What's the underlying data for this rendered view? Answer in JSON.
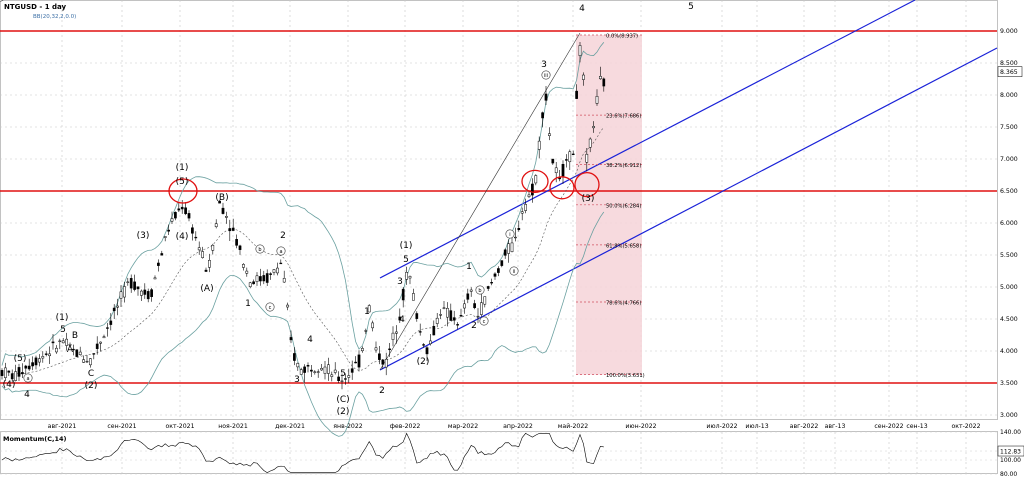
{
  "chart_data": [
    {
      "type": "candlestick",
      "title": "NTGUSD - 1 day",
      "subtitle": "BB(20,32,2,0.0)",
      "symbol": "NTGUSD",
      "timeframe": "1 day",
      "indicator": "BB(20,32,2,0.0)",
      "price_current": "8.365",
      "ylim": [
        2.8,
        9.25
      ],
      "y_ticks": [
        "9.000",
        "8.500",
        "8.000",
        "7.500",
        "7.000",
        "6.500",
        "6.000",
        "5.500",
        "5.000",
        "4.500",
        "4.000",
        "3.500",
        "3.000"
      ],
      "x_ticks": [
        "авг-2021",
        "сен-2021",
        "окт-2021",
        "ноя-2021",
        "дек-2021",
        "янв-2022",
        "фев-2022",
        "мар-2022",
        "апр-2022",
        "май-2022",
        "июн-2022",
        "июл-2022",
        "июл-13",
        "авг-2022",
        "авг-13",
        "сен-2022",
        "сен-13",
        "окт-2022"
      ],
      "horizontal_levels": [
        9.0,
        6.5,
        3.5
      ],
      "fibonacci": [
        {
          "label": "0.0%(8.937)",
          "value": 8.937
        },
        {
          "label": "23.6%(7.686)",
          "value": 7.686
        },
        {
          "label": "38.2%(6.912)",
          "value": 6.912
        },
        {
          "label": "50.0%(6.284)",
          "value": 6.284
        },
        {
          "label": "61.8%(5.658)",
          "value": 5.658
        },
        {
          "label": "78.6%(4.766)",
          "value": 4.766
        },
        {
          "label": "100.0%(3.631)",
          "value": 3.631
        }
      ],
      "wave_labels": [
        "(1)",
        "5",
        "B",
        "A",
        "C",
        "(2)",
        "4",
        "(1)",
        "(5)",
        "(3)",
        "(4)",
        "(B)",
        "(A)",
        "1",
        "2",
        "3",
        "4",
        "5",
        "(C)",
        "(2)",
        "1",
        "2",
        "3",
        "4",
        "(1)",
        "5",
        "(2)",
        "1",
        "2",
        "3",
        "4",
        "(3)",
        "5",
        "(4)",
        "(5)",
        "a",
        "b",
        "c",
        "a",
        "b",
        "c",
        "i",
        "ii",
        "iii",
        "iv",
        "v"
      ],
      "grid": true,
      "legend": "none"
    },
    {
      "type": "line",
      "title": "Momentum(C,14)",
      "ylim": [
        80,
        140
      ],
      "y_ticks": [
        "140.00",
        "112.83",
        "100.00",
        "80.00"
      ],
      "current_value": "112.83",
      "grid": true
    }
  ]
}
